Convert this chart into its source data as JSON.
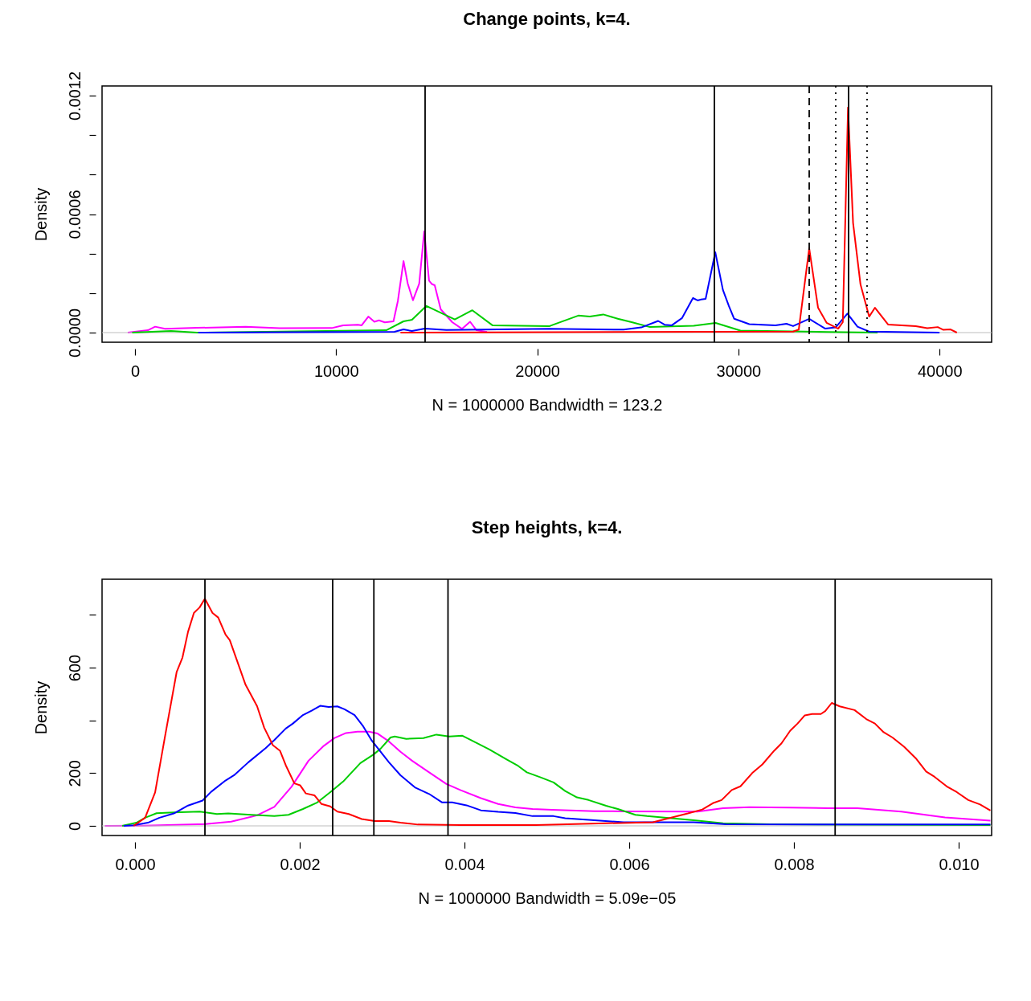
{
  "chart_data": [
    {
      "type": "line",
      "title": "Change points, k=4.",
      "xlabel": "N = 1000000   Bandwidth = 123.2",
      "ylabel": "Density",
      "xlim": [
        -1638,
        42589
      ],
      "ylim": [
        -4.88e-05,
        0.001249
      ],
      "xticks": [
        0,
        10000,
        20000,
        30000,
        40000
      ],
      "yticks": [
        {
          "value": 0,
          "label": "0.0000"
        },
        {
          "value": 0.0002,
          "label": null
        },
        {
          "value": 0.0004,
          "label": null
        },
        {
          "value": 0.0006,
          "label": "0.0006"
        },
        {
          "value": 0.0008,
          "label": null
        },
        {
          "value": 0.001,
          "label": null
        },
        {
          "value": 0.0012,
          "label": "0.0012"
        }
      ],
      "grid": false,
      "ref_lines": [
        {
          "axis": "y",
          "value": 0,
          "color": "#bebebe",
          "line_style": "solid"
        },
        {
          "axis": "x",
          "value": 14423,
          "color": "#000000",
          "line_style": "solid"
        },
        {
          "axis": "x",
          "value": 28805,
          "color": "#000000",
          "line_style": "solid"
        },
        {
          "axis": "x",
          "value": 33520,
          "color": "#000000",
          "line_style": "dashed"
        },
        {
          "axis": "x",
          "value": 34838,
          "color": "#000000",
          "line_style": "dotted"
        },
        {
          "axis": "x",
          "value": 35477,
          "color": "#000000",
          "line_style": "solid"
        },
        {
          "axis": "x",
          "value": 36396,
          "color": "#000000",
          "line_style": "dotted"
        }
      ],
      "series": [
        {
          "color": "#ff00ff",
          "x": [
            -360,
            640,
            1000,
            1500,
            3080,
            5500,
            7190,
            9780,
            10350,
            11080,
            11270,
            11600,
            11900,
            12130,
            12420,
            12850,
            13070,
            13350,
            13560,
            13820,
            14130,
            14380,
            14620,
            14770,
            14900,
            15200,
            15770,
            16260,
            16660,
            16980,
            17500
          ],
          "values": [
            0,
            1.2e-05,
            3e-05,
            1.9e-05,
            2.4e-05,
            3e-05,
            2.2e-05,
            2.3e-05,
            3.7e-05,
            4e-05,
            3.7e-05,
            8.1e-05,
            5.5e-05,
            6.2e-05,
            5.2e-05,
            5.7e-05,
            0.000161,
            0.000362,
            0.000248,
            0.000164,
            0.000248,
            0.000513,
            0.000263,
            0.000245,
            0.00024,
            0.000118,
            5.3e-05,
            1.9e-05,
            5.5e-05,
            1.2e-05,
            3e-06
          ]
        },
        {
          "color": "#00cd00",
          "x": [
            -140,
            1790,
            3080,
            12490,
            13350,
            13770,
            14490,
            15900,
            16770,
            17770,
            20620,
            20800,
            22040,
            22610,
            23280,
            24000,
            24730,
            25600,
            27780,
            28870,
            30100,
            34460,
            36920
          ],
          "values": [
            0,
            8e-06,
            0,
            1.2e-05,
            5.7e-05,
            6.5e-05,
            0.000135,
            6.7e-05,
            0.000113,
            3.7e-05,
            3.3e-05,
            4e-05,
            8.6e-05,
            8.1e-05,
            9.2e-05,
            7e-05,
            5.2e-05,
            2.8e-05,
            3.5e-05,
            4.9e-05,
            1e-05,
            3e-06,
            0
          ]
        },
        {
          "color": "#0000ff",
          "x": [
            3140,
            12900,
            13350,
            13770,
            14410,
            15480,
            20620,
            24290,
            25170,
            26010,
            26330,
            26690,
            27200,
            27740,
            27970,
            28150,
            28370,
            28850,
            29230,
            29530,
            29790,
            30540,
            31840,
            32390,
            32720,
            33520,
            34320,
            34830,
            35420,
            35920,
            36500,
            40000
          ],
          "values": [
            0,
            4e-06,
            1.6e-05,
            8e-06,
            2e-05,
            1.3e-05,
            1.9e-05,
            1.5e-05,
            2.6e-05,
            5.9e-05,
            4e-05,
            3.7e-05,
            7.4e-05,
            0.000175,
            0.000163,
            0.000168,
            0.000171,
            0.000407,
            0.000216,
            0.000134,
            7e-05,
            4.3e-05,
            3.7e-05,
            4.5e-05,
            3.3e-05,
            7e-05,
            2e-05,
            2.6e-05,
            9.6e-05,
            3e-05,
            5e-06,
            0
          ]
        },
        {
          "color": "#ff0000",
          "x": [
            13200,
            32720,
            33000,
            33520,
            33960,
            34390,
            34960,
            35190,
            35450,
            35700,
            36070,
            36500,
            36790,
            37440,
            38820,
            39390,
            39910,
            40190,
            40550,
            40860
          ],
          "values": [
            0,
            5e-06,
            1.5e-05,
            0.000427,
            0.000126,
            4.9e-05,
            2e-05,
            5.3e-05,
            0.00114,
            0.000556,
            0.000244,
            8.1e-05,
            0.000126,
            4.1e-05,
            3.3e-05,
            2.2e-05,
            2.8e-05,
            1.4e-05,
            1.6e-05,
            0
          ]
        }
      ]
    },
    {
      "type": "line",
      "title": "Step heights, k=4.",
      "xlabel": "N = 1000000   Bandwidth = 5.09e−05",
      "ylabel": "Density",
      "xlim": [
        -0.0004,
        0.0104
      ],
      "ylim": [
        -36.5,
        935
      ],
      "xticks": [
        {
          "value": 0,
          "label": "0.000"
        },
        {
          "value": 0.002,
          "label": "0.002"
        },
        {
          "value": 0.004,
          "label": "0.004"
        },
        {
          "value": 0.006,
          "label": "0.006"
        },
        {
          "value": 0.008,
          "label": "0.008"
        },
        {
          "value": 0.01,
          "label": "0.010"
        }
      ],
      "yticks": [
        0,
        200,
        {
          "value": 400,
          "label": null
        },
        600,
        {
          "value": 800,
          "label": null
        }
      ],
      "grid": false,
      "ref_lines": [
        {
          "axis": "y",
          "value": 0,
          "color": "#bebebe",
          "line_style": "solid"
        },
        {
          "axis": "x",
          "value": 0.000849,
          "color": "#000000",
          "line_style": "solid"
        },
        {
          "axis": "x",
          "value": 0.0024,
          "color": "#000000",
          "line_style": "solid"
        },
        {
          "axis": "x",
          "value": 0.0029,
          "color": "#000000",
          "line_style": "solid"
        },
        {
          "axis": "x",
          "value": 0.0038,
          "color": "#000000",
          "line_style": "solid"
        },
        {
          "axis": "x",
          "value": 0.0085,
          "color": "#000000",
          "line_style": "solid"
        }
      ],
      "series": [
        {
          "color": "#ff00ff",
          "x": [
            -0.000365,
            0.00012,
            0.000855,
            0.001168,
            0.001482,
            0.001691,
            0.0019,
            0.002107,
            0.002283,
            0.002422,
            0.002562,
            0.002701,
            0.002839,
            0.002945,
            0.003083,
            0.003223,
            0.003363,
            0.003571,
            0.003781,
            0.003955,
            0.004199,
            0.004409,
            0.004618,
            0.004826,
            0.005063,
            0.005578,
            0.005932,
            0.006829,
            0.007139,
            0.007459,
            0.007955,
            0.008416,
            0.008771,
            0.009303,
            0.009834,
            0.010385
          ],
          "values": [
            0,
            1,
            7,
            16,
            40,
            72,
            148,
            247,
            301,
            333,
            352,
            357,
            357,
            350,
            320,
            281,
            247,
            203,
            159,
            135,
            105,
            83,
            70,
            64,
            61,
            56,
            55,
            54,
            67,
            71,
            69,
            67,
            67,
            54,
            32,
            20
          ]
        },
        {
          "color": "#00cd00",
          "x": [
            -0.000156,
            1.8e-05,
            0.000123,
            0.000262,
            0.000471,
            0.000784,
            0.000994,
            0.001132,
            0.001412,
            0.001691,
            0.001863,
            0.002039,
            0.002214,
            0.002387,
            0.002527,
            0.002736,
            0.002893,
            0.00298,
            0.003102,
            0.003154,
            0.003293,
            0.003502,
            0.003659,
            0.003815,
            0.003971,
            0.00413,
            0.004302,
            0.004513,
            0.004653,
            0.004757,
            0.004931,
            0.005081,
            0.005223,
            0.005366,
            0.005507,
            0.00572,
            0.005862,
            0.006074,
            0.006215,
            0.006429,
            0.006784,
            0.007139,
            0.00771,
            0.010385
          ],
          "values": [
            0,
            12,
            31,
            48,
            51,
            54,
            45,
            47,
            42,
            37,
            42,
            64,
            89,
            132,
            168,
            238,
            270,
            292,
            335,
            339,
            330,
            333,
            346,
            339,
            342,
            317,
            290,
            252,
            227,
            203,
            183,
            165,
            132,
            108,
            98,
            76,
            64,
            42,
            37,
            31,
            21,
            10,
            6,
            3
          ]
        },
        {
          "color": "#0000ff",
          "x": [
            -0.000138,
            -1.7e-05,
            0.000157,
            0.000297,
            0.000471,
            0.000644,
            0.00082,
            0.000924,
            0.001099,
            0.001203,
            0.001376,
            0.001586,
            0.001691,
            0.00183,
            0.001917,
            0.002039,
            0.002144,
            0.002248,
            0.002351,
            0.002457,
            0.002544,
            0.002666,
            0.002771,
            0.002875,
            0.003083,
            0.003223,
            0.003398,
            0.003571,
            0.003729,
            0.003851,
            0.004025,
            0.004199,
            0.004409,
            0.004618,
            0.004826,
            0.005081,
            0.005223,
            0.005578,
            0.005932,
            0.006377,
            0.006784,
            0.007175,
            0.010385
          ],
          "values": [
            0,
            2,
            12,
            31,
            47,
            77,
            96,
            129,
            172,
            192,
            241,
            295,
            325,
            369,
            388,
            420,
            437,
            455,
            451,
            453,
            442,
            420,
            377,
            323,
            241,
            192,
            146,
            121,
            89,
            89,
            78,
            59,
            53,
            49,
            37,
            37,
            29,
            21,
            14,
            14,
            14,
            6,
            5
          ]
        },
        {
          "color": "#ff0000",
          "x": [
            -1.7e-05,
            0.000123,
            0.000244,
            0.000367,
            0.000506,
            0.000576,
            0.000644,
            0.000715,
            0.000784,
            0.000848,
            0.000941,
            0.00101,
            0.001099,
            0.001151,
            0.001238,
            0.001342,
            0.001482,
            0.001569,
            0.001673,
            0.00176,
            0.00183,
            0.001935,
            0.002004,
            0.002074,
            0.002178,
            0.002265,
            0.00237,
            0.002457,
            0.002595,
            0.002753,
            0.00291,
            0.003083,
            0.003223,
            0.003433,
            0.003951,
            0.004868,
            0.006288,
            0.006712,
            0.006888,
            0.007015,
            0.007122,
            0.007245,
            0.007351,
            0.007493,
            0.007617,
            0.00776,
            0.007849,
            0.007955,
            0.008044,
            0.008132,
            0.00822,
            0.008327,
            0.00838,
            0.008459,
            0.008556,
            0.008736,
            0.008878,
            0.008983,
            0.009089,
            0.009196,
            0.009337,
            0.00948,
            0.009605,
            0.009707,
            0.009854,
            0.009977,
            0.010117,
            0.01026,
            0.010385
          ],
          "values": [
            0,
            31,
            127,
            344,
            584,
            638,
            736,
            807,
            828,
            861,
            807,
            790,
            725,
            704,
            627,
            535,
            454,
            372,
            306,
            285,
            230,
            161,
            154,
            123,
            116,
            83,
            74,
            54,
            45,
            26,
            18,
            18,
            12,
            5,
            3,
            3,
            14,
            47,
            62,
            86,
            98,
            136,
            150,
            200,
            233,
            285,
            313,
            361,
            388,
            419,
            424,
            424,
            435,
            466,
            453,
            439,
            405,
            388,
            355,
            335,
            300,
            256,
            206,
            186,
            150,
            128,
            98,
            81,
            58
          ]
        }
      ]
    }
  ]
}
